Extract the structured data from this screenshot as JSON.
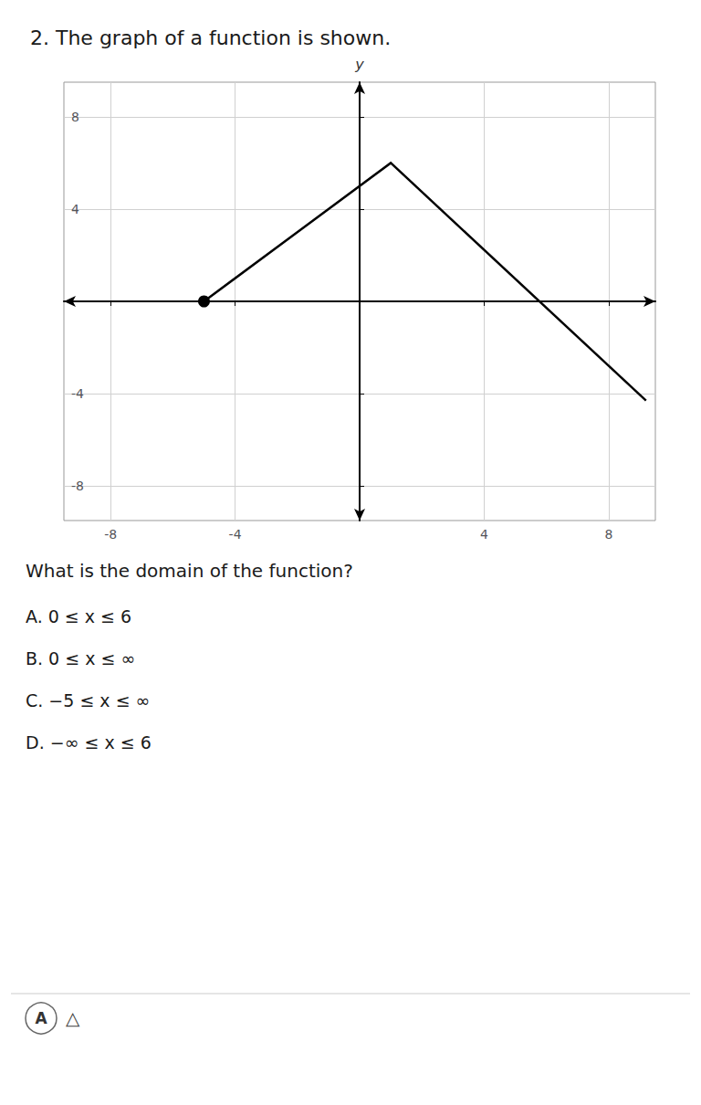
{
  "chart_data": {
    "type": "line",
    "title": "2. The graph of a function is shown.",
    "ylabel": "y",
    "annotations": [
      "What is the domain of the function?",
      "A. 0 ≤ x ≤ 6",
      "B. 0 ≤ x ≤ ∞",
      "C. −5 ≤ x ≤ ∞",
      "D. −∞ ≤ x ≤ 6"
    ],
    "footer": [
      "A",
      "△"
    ],
    "xlim": [
      -9.5,
      9.5
    ],
    "ylim": [
      -9.5,
      9.5
    ],
    "xticks": [
      -8,
      -4,
      4,
      8
    ],
    "yticks": [
      -8,
      -4,
      4,
      8
    ],
    "grid": true,
    "series": [
      {
        "type": "line",
        "x": [
          -5,
          1,
          9.2
        ],
        "values": [
          0,
          6,
          -4.3
        ],
        "color": "#000000"
      },
      {
        "type": "scatter",
        "x": [
          -5
        ],
        "values": [
          0
        ],
        "color": "#000000",
        "marker": "circle"
      }
    ]
  }
}
